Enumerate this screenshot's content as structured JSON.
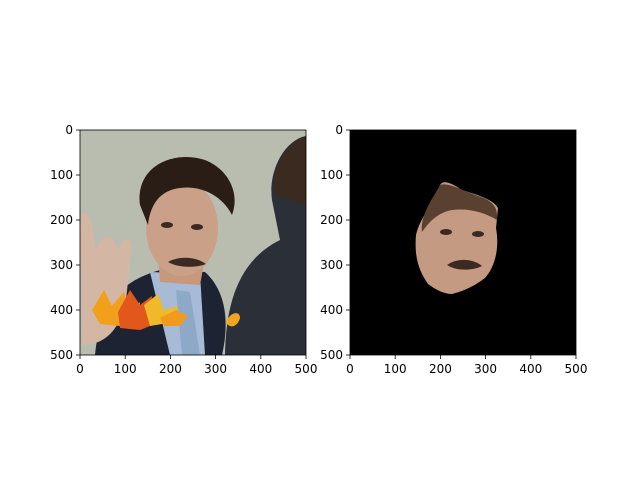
{
  "chart_data": [
    {
      "type": "image",
      "title": "",
      "xlabel": "",
      "ylabel": "",
      "xlim": [
        0,
        500
      ],
      "ylim": [
        500,
        0
      ],
      "xticks": [
        0,
        100,
        200,
        300,
        400,
        500
      ],
      "yticks": [
        0,
        100,
        200,
        300,
        400,
        500
      ],
      "xticklabels": [
        "0",
        "100",
        "200",
        "300",
        "400",
        "500"
      ],
      "yticklabels": [
        "0",
        "100",
        "200",
        "300",
        "400",
        "500"
      ],
      "content": "photo",
      "background_color": "#b9bdb0"
    },
    {
      "type": "image",
      "title": "",
      "xlabel": "",
      "ylabel": "",
      "xlim": [
        0,
        500
      ],
      "ylim": [
        500,
        0
      ],
      "xticks": [
        0,
        100,
        200,
        300,
        400,
        500
      ],
      "yticks": [
        0,
        100,
        200,
        300,
        400,
        500
      ],
      "xticklabels": [
        "0",
        "100",
        "200",
        "300",
        "400",
        "500"
      ],
      "yticklabels": [
        "0",
        "100",
        "200",
        "300",
        "400",
        "500"
      ],
      "content": "masked-photo",
      "background_color": "#000000"
    }
  ]
}
